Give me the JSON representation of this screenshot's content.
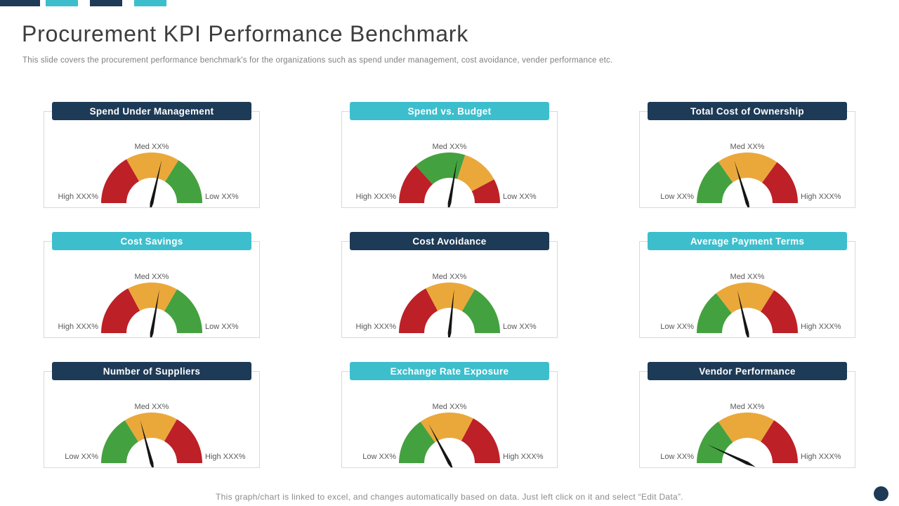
{
  "slide": {
    "title": "Procurement KPI Performance Benchmark",
    "subtitle": "This slide covers the procurement performance benchmark's for the organizations such as spend under management, cost avoidance, vender performance etc.",
    "footer": "This graph/chart is linked to excel, and changes automatically based on data. Just left click on it and select “Edit Data”."
  },
  "colors": {
    "navy": "#1d3a56",
    "teal": "#3dbecd",
    "red": "#bd2027",
    "amber": "#eaa83b",
    "green": "#44a13f",
    "needle": "#151515",
    "title_text": "#3d3d3d",
    "muted_text": "#7f7f7f",
    "label_text": "#595959",
    "card_border": "#d9d9d9"
  },
  "logo_bars": [
    {
      "color": "navy"
    },
    {
      "color": "teal"
    },
    {
      "color": "navy"
    },
    {
      "color": "teal"
    }
  ],
  "chart_data": [
    {
      "type": "gauge",
      "title": "Spend Under Management",
      "header_color": "navy",
      "top_label": "Med XX%",
      "left_label": "High XXX%",
      "right_label": "Low XX%",
      "dial_range_deg": [
        0,
        180
      ],
      "segments": [
        {
          "color": "red",
          "from_deg": 0,
          "to_deg": 60
        },
        {
          "color": "amber",
          "from_deg": 60,
          "to_deg": 122
        },
        {
          "color": "green",
          "from_deg": 122,
          "to_deg": 180
        }
      ],
      "needle_deg": 103
    },
    {
      "type": "gauge",
      "title": "Spend vs. Budget",
      "header_color": "teal",
      "top_label": "Med XX%",
      "left_label": "High XXX%",
      "right_label": "Low XX%",
      "dial_range_deg": [
        0,
        180
      ],
      "segments": [
        {
          "color": "red",
          "from_deg": 0,
          "to_deg": 48
        },
        {
          "color": "green",
          "from_deg": 48,
          "to_deg": 108
        },
        {
          "color": "amber",
          "from_deg": 108,
          "to_deg": 152
        },
        {
          "color": "red",
          "from_deg": 152,
          "to_deg": 180
        }
      ],
      "needle_deg": 100
    },
    {
      "type": "gauge",
      "title": "Total Cost of Ownership",
      "header_color": "navy",
      "top_label": "Med XX%",
      "left_label": "Low XX%",
      "right_label": "High XXX%",
      "dial_range_deg": [
        0,
        180
      ],
      "segments": [
        {
          "color": "green",
          "from_deg": 0,
          "to_deg": 55
        },
        {
          "color": "amber",
          "from_deg": 55,
          "to_deg": 126
        },
        {
          "color": "red",
          "from_deg": 126,
          "to_deg": 180
        }
      ],
      "needle_deg": 73
    },
    {
      "type": "gauge",
      "title": "Cost Savings",
      "header_color": "teal",
      "top_label": "Med XX%",
      "left_label": "High XXX%",
      "right_label": "Low XX%",
      "dial_range_deg": [
        0,
        180
      ],
      "segments": [
        {
          "color": "red",
          "from_deg": 0,
          "to_deg": 62
        },
        {
          "color": "amber",
          "from_deg": 62,
          "to_deg": 120
        },
        {
          "color": "green",
          "from_deg": 120,
          "to_deg": 180
        }
      ],
      "needle_deg": 100
    },
    {
      "type": "gauge",
      "title": "Cost Avoidance",
      "header_color": "navy",
      "top_label": "Med XX%",
      "left_label": "High XXX%",
      "right_label": "Low XX%",
      "dial_range_deg": [
        0,
        180
      ],
      "segments": [
        {
          "color": "red",
          "from_deg": 0,
          "to_deg": 62
        },
        {
          "color": "amber",
          "from_deg": 62,
          "to_deg": 120
        },
        {
          "color": "green",
          "from_deg": 120,
          "to_deg": 180
        }
      ],
      "needle_deg": 96
    },
    {
      "type": "gauge",
      "title": "Average Payment Terms",
      "header_color": "teal",
      "top_label": "Med XX%",
      "left_label": "Low XX%",
      "right_label": "High XXX%",
      "dial_range_deg": [
        0,
        180
      ],
      "segments": [
        {
          "color": "green",
          "from_deg": 0,
          "to_deg": 52
        },
        {
          "color": "amber",
          "from_deg": 52,
          "to_deg": 122
        },
        {
          "color": "red",
          "from_deg": 122,
          "to_deg": 180
        }
      ],
      "needle_deg": 77
    },
    {
      "type": "gauge",
      "title": "Number of Suppliers",
      "header_color": "navy",
      "top_label": "Med XX%",
      "left_label": "Low XX%",
      "right_label": "High XXX%",
      "dial_range_deg": [
        0,
        180
      ],
      "segments": [
        {
          "color": "green",
          "from_deg": 0,
          "to_deg": 58
        },
        {
          "color": "amber",
          "from_deg": 58,
          "to_deg": 120
        },
        {
          "color": "red",
          "from_deg": 120,
          "to_deg": 180
        }
      ],
      "needle_deg": 75
    },
    {
      "type": "gauge",
      "title": "Exchange Rate Exposure",
      "header_color": "teal",
      "top_label": "Med XX%",
      "left_label": "Low XX%",
      "right_label": "High XXX%",
      "dial_range_deg": [
        0,
        180
      ],
      "segments": [
        {
          "color": "green",
          "from_deg": 0,
          "to_deg": 55
        },
        {
          "color": "amber",
          "from_deg": 55,
          "to_deg": 118
        },
        {
          "color": "red",
          "from_deg": 118,
          "to_deg": 180
        }
      ],
      "needle_deg": 62
    },
    {
      "type": "gauge",
      "title": "Vendor Performance",
      "header_color": "navy",
      "top_label": "Med XX%",
      "left_label": "Low XX%",
      "right_label": "High XXX%",
      "dial_range_deg": [
        0,
        180
      ],
      "segments": [
        {
          "color": "green",
          "from_deg": 0,
          "to_deg": 55
        },
        {
          "color": "amber",
          "from_deg": 55,
          "to_deg": 122
        },
        {
          "color": "red",
          "from_deg": 122,
          "to_deg": 180
        }
      ],
      "needle_deg": 25
    }
  ]
}
